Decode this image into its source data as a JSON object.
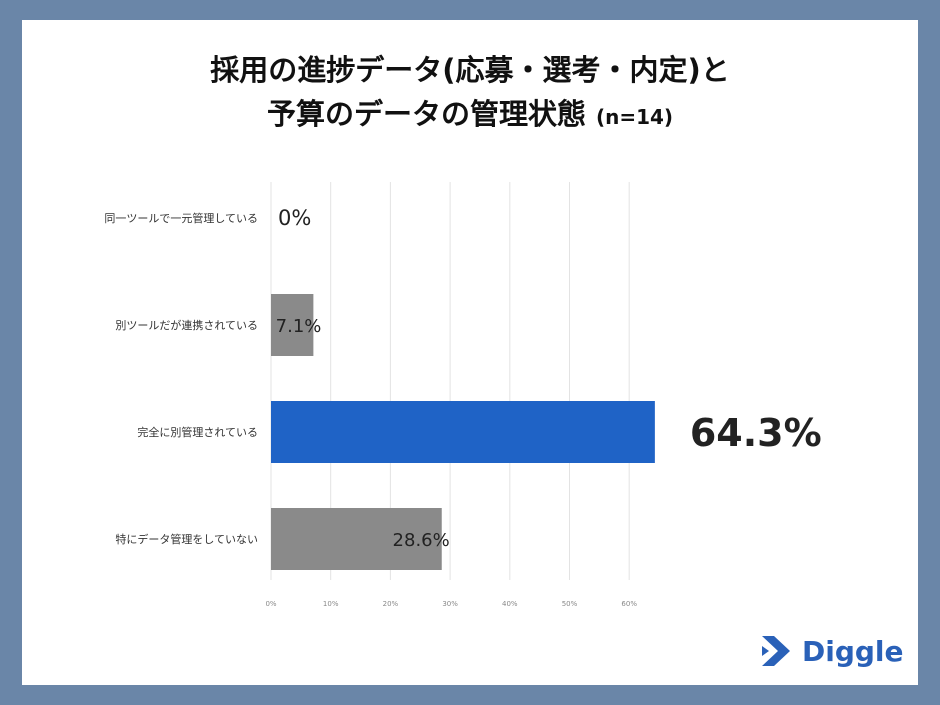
{
  "title": {
    "line1": "採用の進捗データ(応募・選考・内定)と",
    "line2": "予算のデータの管理状態",
    "sample": "(n=14)"
  },
  "logo": {
    "text": "Diggle",
    "icon": "diggle-logo-icon",
    "color": "#2a61b8"
  },
  "colors": {
    "background": "#6a86a8",
    "highlight": "#1f63c6",
    "default_bar": "#8a8a8a"
  },
  "chart_data": {
    "type": "bar",
    "orientation": "horizontal",
    "categories": [
      "同一ツールで一元管理している",
      "別ツールだが連携されている",
      "完全に別管理されている",
      "特にデータ管理をしていない"
    ],
    "values": [
      0,
      7.1,
      64.3,
      28.6
    ],
    "value_labels": [
      "0%",
      "7.1%",
      "64.3%",
      "28.6%"
    ],
    "highlight_index": 2,
    "xticks": [
      "0%",
      "10%",
      "20%",
      "30%",
      "40%",
      "50%",
      "60%"
    ],
    "xlim": [
      0,
      60
    ],
    "grid": true
  }
}
